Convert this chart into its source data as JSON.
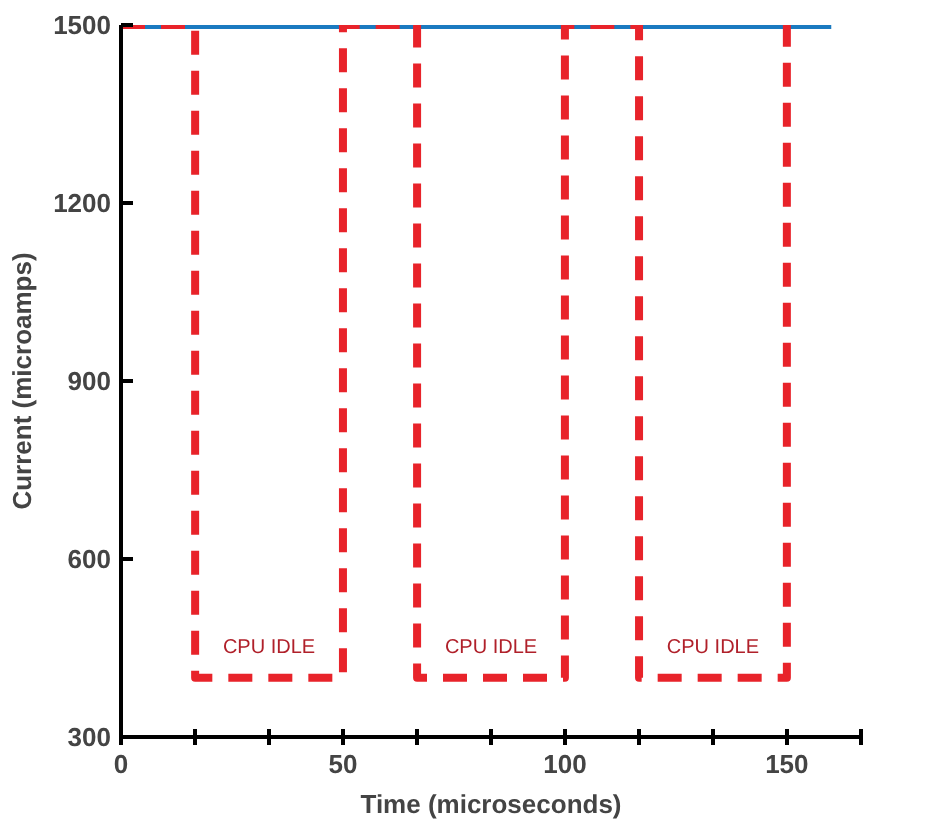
{
  "chart_data": {
    "type": "line",
    "xlabel": "Time (microseconds)",
    "ylabel": "Current (microamps)",
    "xlim": [
      0,
      166.7
    ],
    "ylim": [
      300,
      1500
    ],
    "xticks": [
      0,
      {
        "value": 16.7,
        "label": null
      },
      {
        "value": 33.3,
        "label": null
      },
      50,
      {
        "value": 66.7,
        "label": null
      },
      {
        "value": 83.3,
        "label": null
      },
      100,
      {
        "value": 116.7,
        "label": null
      },
      {
        "value": 133.3,
        "label": null
      },
      150,
      {
        "value": 166.7,
        "label": null
      }
    ],
    "yticks": [
      300,
      600,
      900,
      1200,
      1500
    ],
    "marker": "none",
    "series": [
      {
        "color": "#1a7ac0",
        "line_style": "solid",
        "x": [
          3,
          160
        ],
        "values": [
          1500,
          1500
        ]
      },
      {
        "color": "#e8232a",
        "line_style": "dashed",
        "x": [
          0,
          16.7,
          16.7,
          50,
          50,
          66.7,
          66.7,
          100,
          100,
          116.7,
          116.7,
          150,
          150
        ],
        "values": [
          1500,
          1500,
          400,
          400,
          1500,
          1500,
          400,
          400,
          1500,
          1500,
          400,
          400,
          1500
        ]
      }
    ],
    "annotations": [
      "CPU IDLE",
      "CPU IDLE",
      "CPU IDLE"
    ]
  }
}
